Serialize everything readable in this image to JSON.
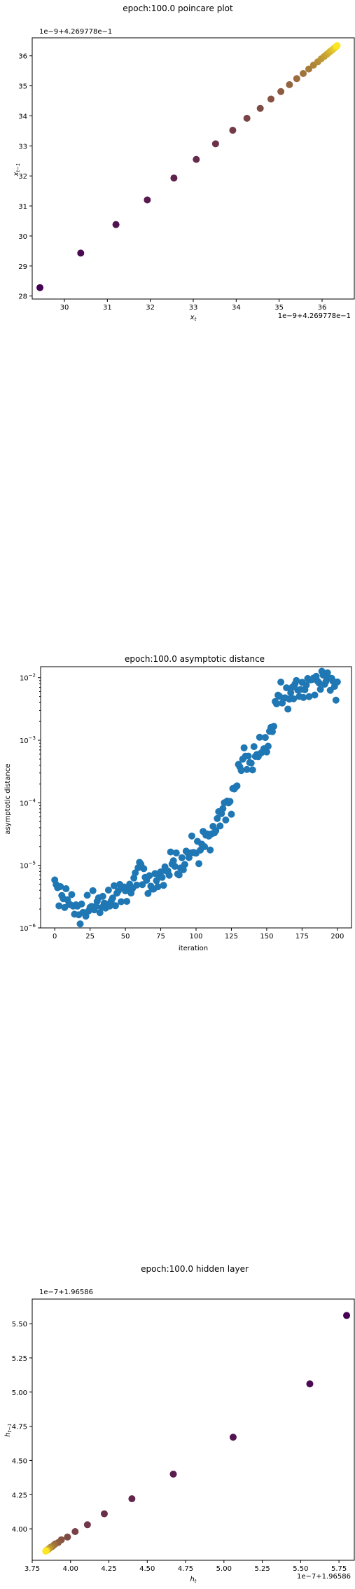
{
  "chart_data": [
    {
      "type": "scatter",
      "title": "epoch:100.0 poincare plot",
      "xlabel": "x_t",
      "ylabel": "x_{t-1}",
      "offset_label_x": "1e−9+4.269778e−1",
      "offset_label_y": "1e−9+4.269778e−1",
      "xlim": [
        29.25,
        36.75
      ],
      "ylim": [
        27.9,
        36.6
      ],
      "xticks": [
        30,
        31,
        32,
        33,
        34,
        35,
        36
      ],
      "yticks": [
        28,
        29,
        30,
        31,
        32,
        33,
        34,
        35,
        36
      ],
      "colors": {
        "start": "#440154",
        "end": "#fde725"
      },
      "x": [
        29.43,
        30.38,
        31.2,
        31.93,
        32.55,
        33.07,
        33.52,
        33.92,
        34.25,
        34.56,
        34.81,
        35.04,
        35.24,
        35.41,
        35.56,
        35.69,
        35.8,
        35.9,
        35.98,
        36.05,
        36.11,
        36.16,
        36.2,
        36.24,
        36.27,
        36.3,
        36.32,
        36.34,
        36.35
      ],
      "y": [
        28.28,
        29.43,
        30.38,
        31.2,
        31.93,
        32.55,
        33.07,
        33.52,
        33.92,
        34.25,
        34.56,
        34.81,
        35.04,
        35.24,
        35.41,
        35.56,
        35.69,
        35.8,
        35.9,
        35.98,
        36.05,
        36.11,
        36.16,
        36.2,
        36.24,
        36.27,
        36.3,
        36.32,
        36.34
      ]
    },
    {
      "type": "scatter",
      "title": "epoch:100.0 asymptotic distance",
      "xlabel": "iteration",
      "ylabel": "asymptotic distance",
      "yscale": "log",
      "xlim": [
        -10,
        210
      ],
      "ylim": [
        1e-06,
        0.015
      ],
      "xticks": [
        0,
        25,
        50,
        75,
        100,
        125,
        150,
        175,
        200
      ],
      "yticks": [
        {
          "value": 1e-06,
          "base": "10",
          "exp": "−6"
        },
        {
          "value": 1e-05,
          "base": "10",
          "exp": "−5"
        },
        {
          "value": 0.0001,
          "base": "10",
          "exp": "−4"
        },
        {
          "value": 0.001,
          "base": "10",
          "exp": "−3"
        },
        {
          "value": 0.01,
          "base": "10",
          "exp": "−2"
        }
      ],
      "color": "#1f77b4",
      "anchors": [
        [
          0,
          5e-06
        ],
        [
          3,
          3.5e-06
        ],
        [
          6,
          3e-06
        ],
        [
          10,
          2.8e-06
        ],
        [
          14,
          2.2e-06
        ],
        [
          18,
          1.6e-06
        ],
        [
          22,
          2e-06
        ],
        [
          27,
          2.6e-06
        ],
        [
          32,
          2.3e-06
        ],
        [
          37,
          2.6e-06
        ],
        [
          42,
          3.2e-06
        ],
        [
          47,
          4e-06
        ],
        [
          52,
          3.6e-06
        ],
        [
          57,
          6e-06
        ],
        [
          60,
          1e-05
        ],
        [
          64,
          6e-06
        ],
        [
          68,
          4.5e-06
        ],
        [
          73,
          6e-06
        ],
        [
          78,
          7e-06
        ],
        [
          84,
          1.3e-05
        ],
        [
          88,
          8e-06
        ],
        [
          92,
          1.2e-05
        ],
        [
          97,
          2e-05
        ],
        [
          102,
          1.5e-05
        ],
        [
          106,
          3e-05
        ],
        [
          110,
          2.5e-05
        ],
        [
          115,
          5e-05
        ],
        [
          120,
          8e-05
        ],
        [
          125,
          0.0001
        ],
        [
          130,
          0.0003
        ],
        [
          134,
          0.0006
        ],
        [
          138,
          0.0004
        ],
        [
          144,
          0.0007
        ],
        [
          150,
          0.0008
        ],
        [
          155,
          0.002
        ],
        [
          158,
          0.006
        ],
        [
          162,
          0.005
        ],
        [
          166,
          0.0045
        ],
        [
          170,
          0.0075
        ],
        [
          174,
          0.006
        ],
        [
          178,
          0.007
        ],
        [
          182,
          0.0085
        ],
        [
          186,
          0.008
        ],
        [
          190,
          0.01
        ],
        [
          195,
          0.009
        ],
        [
          200,
          0.006
        ]
      ]
    },
    {
      "type": "scatter",
      "title": "epoch:100.0 hidden layer",
      "xlabel": "h_t",
      "ylabel": "h_{t-1}",
      "offset_label_x": "1e−7+1.96586",
      "offset_label_y": "1e−7+1.96586",
      "xlim": [
        3.75,
        5.85
      ],
      "ylim": [
        3.77,
        5.68
      ],
      "xticks": [
        "3.75",
        "4.00",
        "4.25",
        "4.50",
        "4.75",
        "5.00",
        "5.25",
        "5.50",
        "5.75"
      ],
      "yticks": [
        "4.00",
        "4.25",
        "4.50",
        "4.75",
        "5.00",
        "5.25",
        "5.50"
      ],
      "colors": {
        "start": "#440154",
        "end": "#fde725"
      },
      "x": [
        5.8,
        5.56,
        5.06,
        4.67,
        4.4,
        4.22,
        4.11,
        4.03,
        3.98,
        3.94,
        3.92,
        3.9,
        3.89,
        3.88,
        3.87,
        3.865,
        3.86,
        3.855,
        3.85,
        3.848,
        3.845,
        3.843,
        3.841,
        3.84,
        3.839,
        3.838
      ],
      "y": [
        5.56,
        5.06,
        4.67,
        4.4,
        4.22,
        4.11,
        4.03,
        3.98,
        3.94,
        3.92,
        3.9,
        3.89,
        3.88,
        3.87,
        3.865,
        3.86,
        3.855,
        3.85,
        3.848,
        3.845,
        3.843,
        3.841,
        3.84,
        3.839,
        3.838,
        3.837
      ]
    }
  ]
}
